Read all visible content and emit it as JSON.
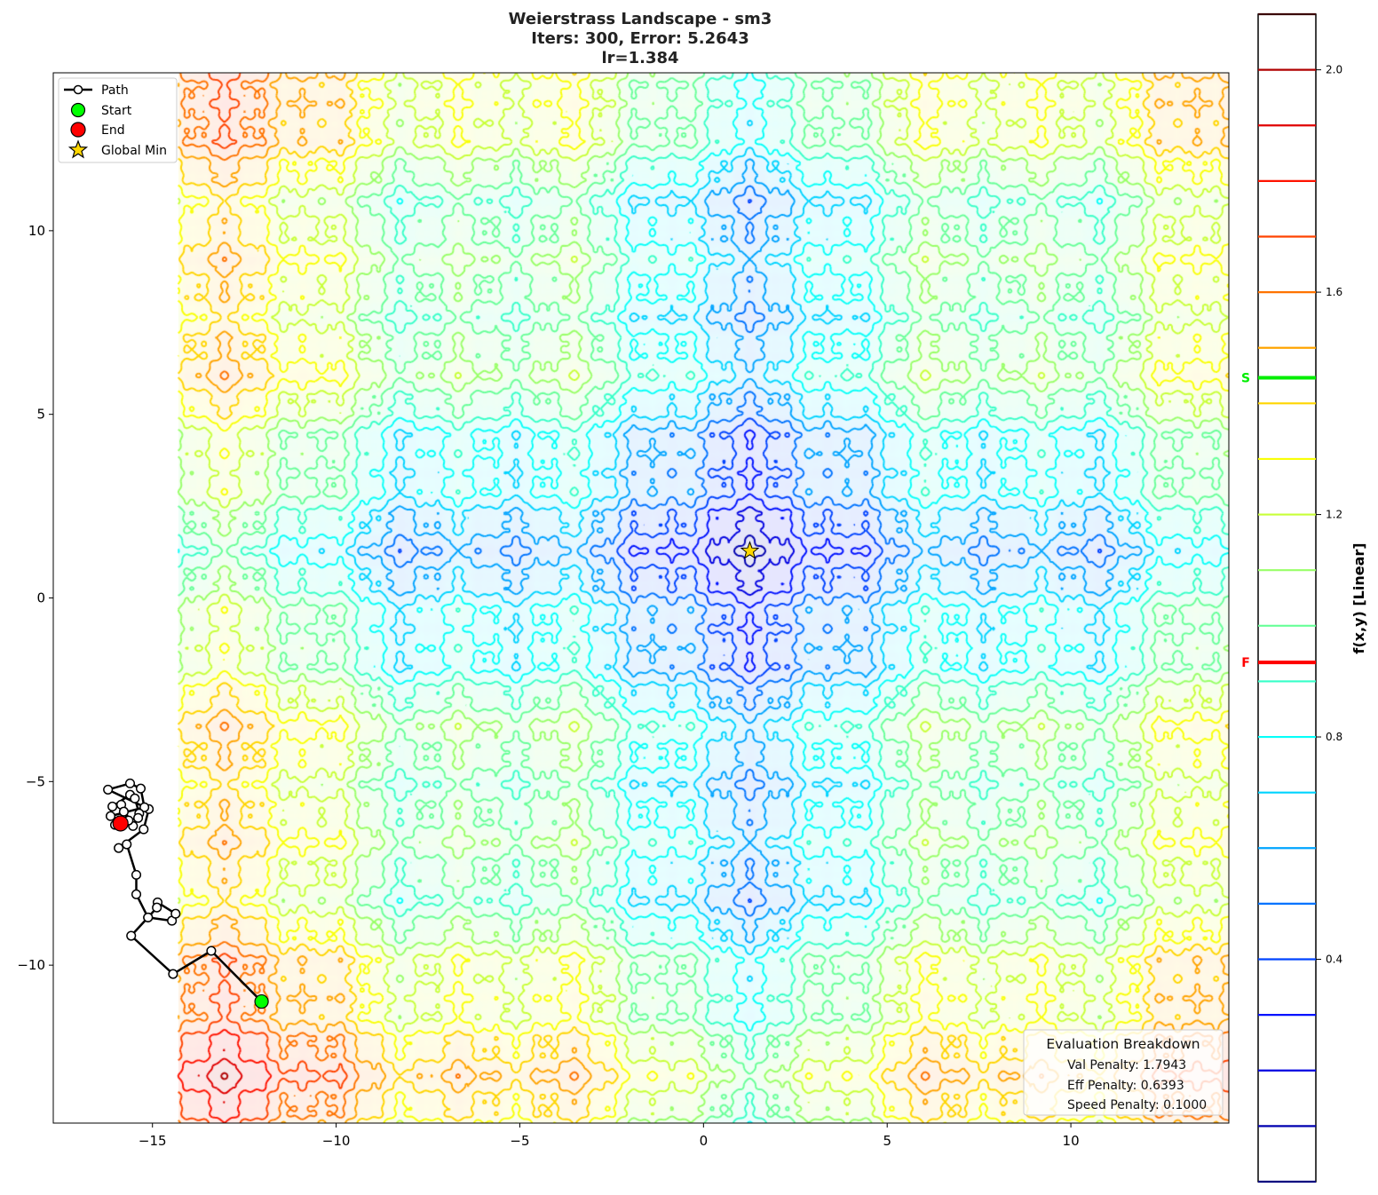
{
  "chart_data": {
    "type": "contour",
    "title": [
      "Weierstrass Landscape - sm3",
      "Iters: 300, Error: 5.2643",
      "lr=1.384"
    ],
    "xlim": [
      -17.7,
      14.3
    ],
    "ylim": [
      -14.3,
      14.3
    ],
    "field_extent": [
      -14.3,
      14.3
    ],
    "x_ticks": [
      -15,
      -10,
      -5,
      0,
      5,
      10
    ],
    "x_tick_labels": [
      "−15",
      "−10",
      "−5",
      "0",
      "5",
      "10"
    ],
    "y_ticks": [
      -10,
      -5,
      0,
      5,
      10
    ],
    "y_tick_labels": [
      "−10",
      "−5",
      "0",
      "5",
      "10"
    ],
    "colormap": "jet",
    "contour_levels": [
      0.1,
      0.2,
      0.3,
      0.4,
      0.5,
      0.6,
      0.7,
      0.8,
      0.9,
      1.0,
      1.1,
      1.2,
      1.3,
      1.4,
      1.5,
      1.6,
      1.7,
      1.8,
      1.9,
      2.0
    ],
    "colorbar": {
      "range": [
        0,
        2.1
      ],
      "ticks": [
        0.4,
        0.8,
        1.2,
        1.6,
        2.0
      ],
      "tick_labels": [
        "0.4",
        "0.8",
        "1.2",
        "1.6",
        "2.0"
      ],
      "label": "f(x,y) [Linear]",
      "markers": [
        {
          "label": "S",
          "value": 1.446,
          "color": "#00ee00"
        },
        {
          "label": "F",
          "value": 0.934,
          "color": "#ff0000"
        }
      ]
    },
    "path": [
      [
        -12.03,
        -10.99
      ],
      [
        -13.4,
        -9.61
      ],
      [
        -14.44,
        -10.24
      ],
      [
        -15.58,
        -9.2
      ],
      [
        -15.12,
        -8.7
      ],
      [
        -14.47,
        -8.79
      ],
      [
        -14.37,
        -8.6
      ],
      [
        -14.86,
        -8.29
      ],
      [
        -14.88,
        -8.43
      ],
      [
        -15.12,
        -8.7
      ],
      [
        -15.44,
        -8.07
      ],
      [
        -15.44,
        -7.54
      ],
      [
        -15.7,
        -6.71
      ],
      [
        -15.92,
        -6.81
      ],
      [
        -15.24,
        -6.3
      ],
      [
        -15.1,
        -5.75
      ],
      [
        -16.21,
        -5.22
      ],
      [
        -15.61,
        -5.05
      ],
      [
        -15.32,
        -5.19
      ],
      [
        -15.22,
        -5.7
      ],
      [
        -16.14,
        -5.94
      ],
      [
        -16.09,
        -5.68
      ],
      [
        -15.61,
        -5.36
      ],
      [
        -15.48,
        -5.46
      ],
      [
        -15.36,
        -5.87
      ],
      [
        -15.53,
        -6.21
      ],
      [
        -15.85,
        -5.63
      ],
      [
        -15.78,
        -5.82
      ],
      [
        -15.65,
        -6.06
      ],
      [
        -15.39,
        -5.99
      ],
      [
        -16.02,
        -6.18
      ],
      [
        -15.87,
        -6.14
      ]
    ],
    "start": [
      -12.03,
      -10.99
    ],
    "end": [
      -15.87,
      -6.14
    ],
    "global_min": [
      1.26,
      1.28
    ],
    "legend": {
      "placement": "upper-left",
      "entries": [
        "Path",
        "Start",
        "End",
        "Global Min"
      ]
    },
    "colors": {
      "start": "#00ff00",
      "end": "#ff0000",
      "global_min": "#ffd700",
      "path": "#000000"
    }
  },
  "evaluation": {
    "title": "Evaluation Breakdown",
    "lines": [
      "Val Penalty: 1.7943",
      "Eff Penalty: 0.6393",
      "Speed Penalty: 0.1000"
    ]
  }
}
